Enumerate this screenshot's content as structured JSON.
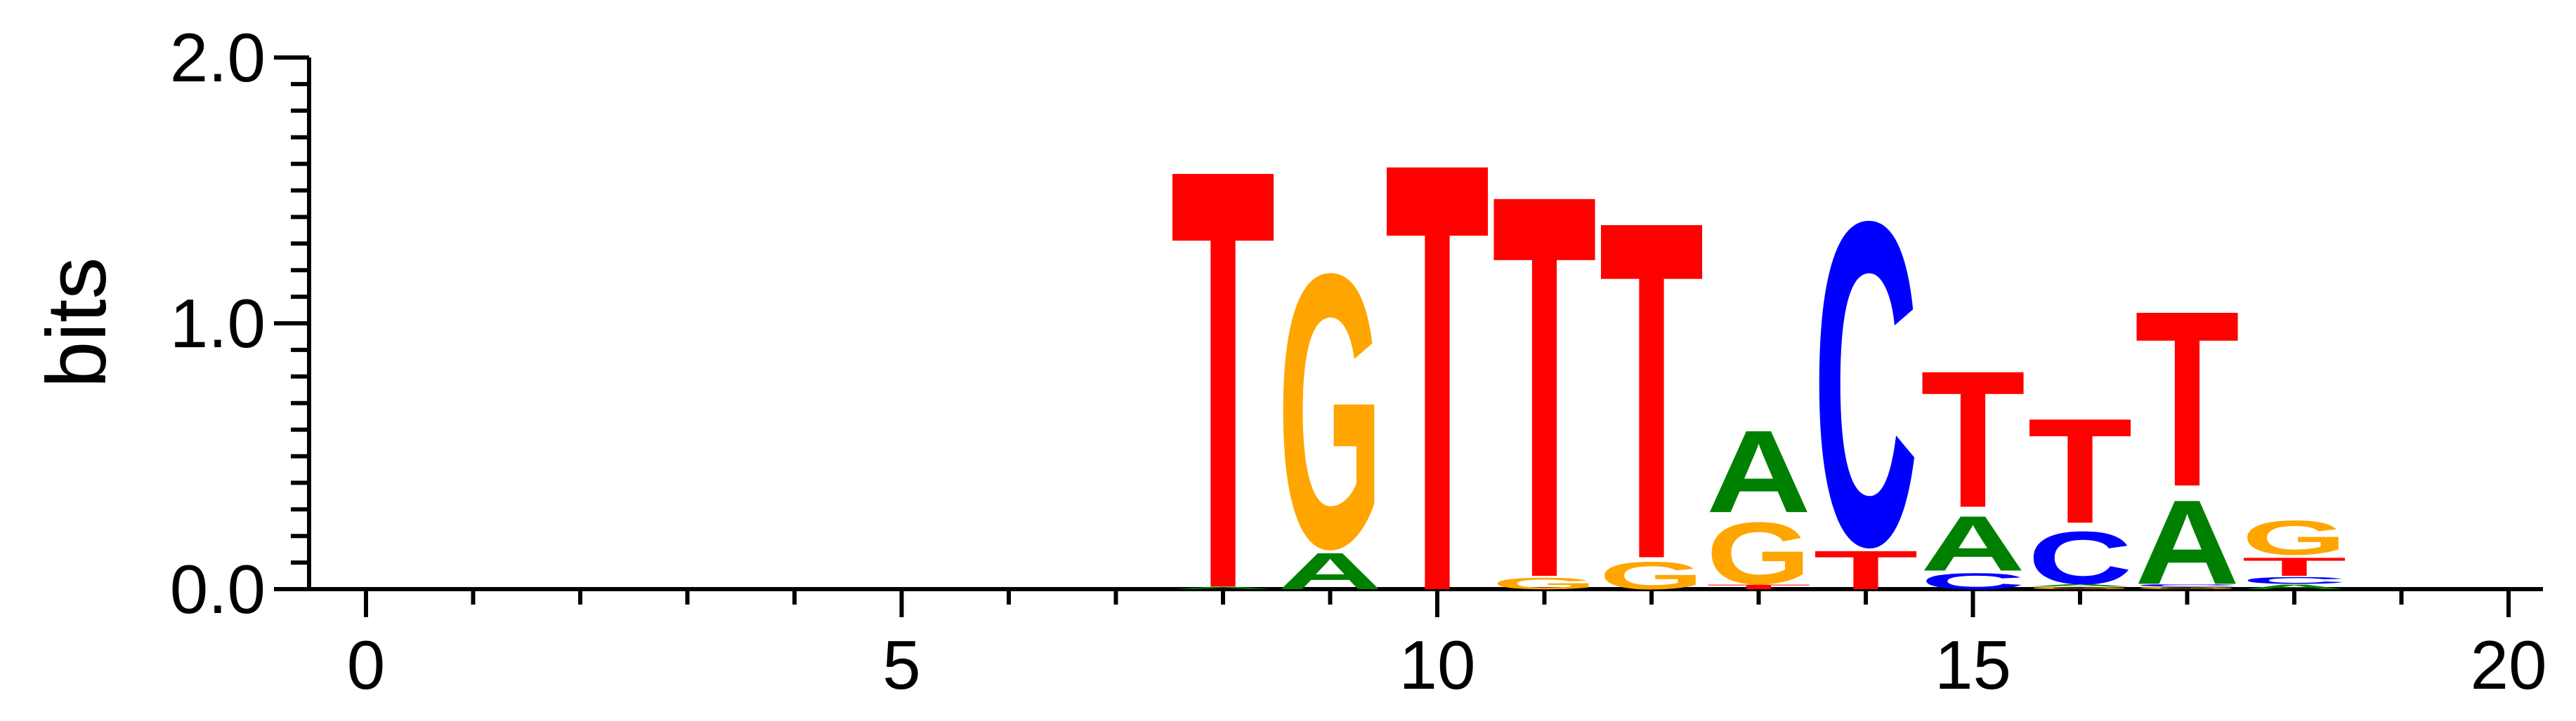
{
  "chart_data": {
    "type": "sequence-logo",
    "ylabel": "bits",
    "xlabel": "",
    "title": "",
    "ylim": [
      0,
      2
    ],
    "xlim": [
      -0.5,
      20.5
    ],
    "y_ticks": [
      "0.0",
      "1.0",
      "2.0"
    ],
    "y_tick_values": [
      0,
      1,
      2
    ],
    "x_ticks": [
      "0",
      "5",
      "10",
      "15",
      "20"
    ],
    "x_tick_values": [
      0,
      5,
      10,
      15,
      20
    ],
    "colors": {
      "A": "#008000",
      "C": "#0000ff",
      "G": "#ffa500",
      "T": "#ff0000"
    },
    "positions": [
      {
        "x": 8,
        "letters": [
          [
            "A",
            0.01
          ],
          [
            "T",
            1.84
          ]
        ]
      },
      {
        "x": 9,
        "letters": [
          [
            "A",
            0.16
          ],
          [
            "G",
            1.2
          ]
        ]
      },
      {
        "x": 10,
        "letters": [
          [
            "T",
            1.88
          ]
        ]
      },
      {
        "x": 11,
        "letters": [
          [
            "G",
            0.05
          ],
          [
            "T",
            1.68
          ]
        ]
      },
      {
        "x": 12,
        "letters": [
          [
            "G",
            0.12
          ],
          [
            "T",
            1.48
          ]
        ]
      },
      {
        "x": 13,
        "letters": [
          [
            "T",
            0.02
          ],
          [
            "G",
            0.27
          ],
          [
            "A",
            0.36
          ]
        ]
      },
      {
        "x": 14,
        "letters": [
          [
            "T",
            0.17
          ],
          [
            "C",
            1.42
          ]
        ]
      },
      {
        "x": 15,
        "letters": [
          [
            "C",
            0.07
          ],
          [
            "A",
            0.24
          ],
          [
            "T",
            0.6
          ]
        ]
      },
      {
        "x": 16,
        "letters": [
          [
            "G",
            0.01
          ],
          [
            "A",
            0.01
          ],
          [
            "C",
            0.23
          ],
          [
            "T",
            0.46
          ]
        ]
      },
      {
        "x": 17,
        "letters": [
          [
            "G",
            0.01
          ],
          [
            "C",
            0.01
          ],
          [
            "A",
            0.37
          ],
          [
            "T",
            0.77
          ]
        ]
      },
      {
        "x": 18,
        "letters": [
          [
            "A",
            0.02
          ],
          [
            "C",
            0.03
          ],
          [
            "T",
            0.08
          ],
          [
            "G",
            0.15
          ]
        ]
      }
    ]
  }
}
